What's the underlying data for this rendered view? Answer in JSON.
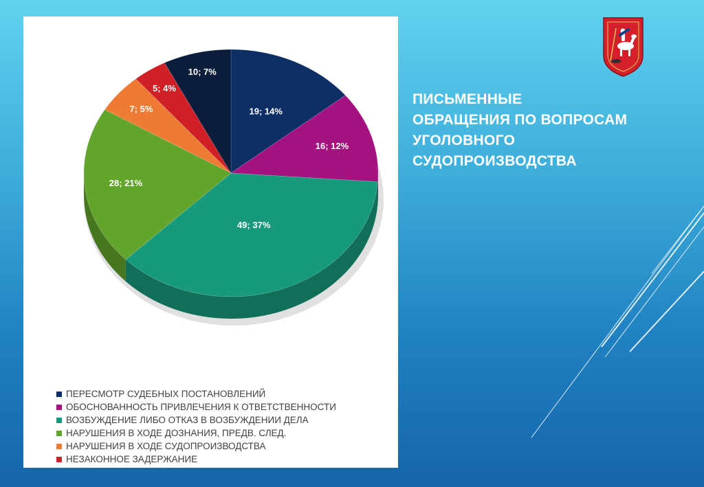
{
  "slide": {
    "title_lines": [
      "ПИСЬМЕННЫЕ",
      "ОБРАЩЕНИЯ ПО ВОПРОСАМ",
      "УГОЛОВНОГО",
      "СУДОПРОИЗВОДСТВА"
    ]
  },
  "chart_data": {
    "type": "pie",
    "title": "",
    "legend_position": "bottom",
    "categories": [
      "ПЕРЕСМОТР СУДЕБНЫХ ПОСТАНОВЛЕНИЙ",
      "ОБОСНОВАННОСТЬ ПРИВЛЕЧЕНИЯ К ОТВЕТСТВЕННОСТИ",
      "ВОЗБУЖДЕНИЕ ЛИБО ОТКАЗ В ВОЗБУЖДЕНИИ ДЕЛА",
      "НАРУШЕНИЯ В ХОДЕ ДОЗНАНИЯ, ПРЕДВ. СЛЕД.",
      "НАРУШЕНИЯ В ХОДЕ СУДОПРОИЗВОДСТВА",
      "НЕЗАКОННОЕ ЗАДЕРЖАНИЕ",
      ""
    ],
    "values": [
      19,
      16,
      49,
      28,
      7,
      5,
      10
    ],
    "labels": [
      "19; 14%",
      "16; 12%",
      "49; 37%",
      "28; 21%",
      "7; 5%",
      "5; 4%",
      "10; 7%"
    ],
    "colors": [
      "#0e2f66",
      "#a4127f",
      "#179a7c",
      "#62a42c",
      "#ee7b34",
      "#cf2027",
      "#0b1d3b"
    ]
  },
  "icons": {
    "coat_of_arms": "moscow-coat-of-arms-icon"
  }
}
